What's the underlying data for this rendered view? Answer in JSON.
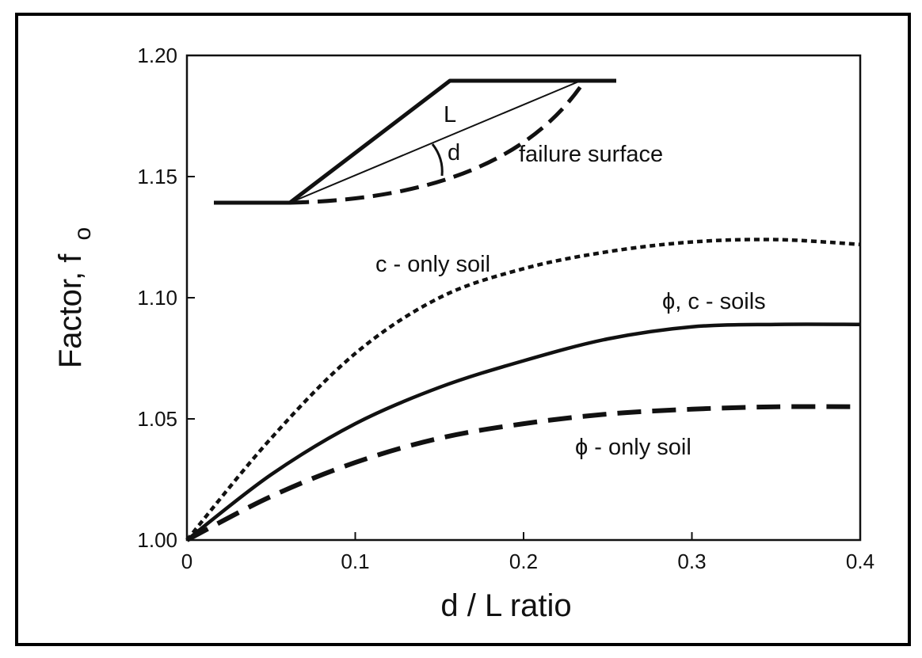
{
  "chart_data": {
    "type": "line",
    "xlabel": "d / L ratio",
    "ylabel": "Factor, f",
    "ylabel_subscript": "o",
    "xlim": [
      0,
      0.4
    ],
    "ylim": [
      1.0,
      1.2
    ],
    "x_ticks": [
      "0",
      "0.1",
      "0.2",
      "0.3",
      "0.4"
    ],
    "y_ticks": [
      "1.00",
      "1.05",
      "1.10",
      "1.15",
      "1.20"
    ],
    "grid": false,
    "legend": "none (series labelled directly on plot)",
    "series": [
      {
        "name": "c - only soil",
        "style": "dotted",
        "x": [
          0,
          0.05,
          0.1,
          0.15,
          0.2,
          0.25,
          0.3,
          0.35,
          0.4
        ],
        "y": [
          1.0,
          1.042,
          1.077,
          1.1,
          1.112,
          1.119,
          1.123,
          1.124,
          1.122
        ]
      },
      {
        "name": "ϕ, c - soils",
        "style": "solid",
        "x": [
          0,
          0.05,
          0.1,
          0.15,
          0.2,
          0.25,
          0.3,
          0.35,
          0.4
        ],
        "y": [
          1.0,
          1.027,
          1.048,
          1.063,
          1.074,
          1.083,
          1.088,
          1.089,
          1.089
        ]
      },
      {
        "name": "ϕ - only soil",
        "style": "dashed",
        "x": [
          0,
          0.05,
          0.1,
          0.15,
          0.2,
          0.25,
          0.3,
          0.35,
          0.4
        ],
        "y": [
          1.0,
          1.018,
          1.032,
          1.042,
          1.048,
          1.052,
          1.054,
          1.055,
          1.055
        ]
      }
    ],
    "inset": {
      "label_L": "L",
      "label_d": "d",
      "label_failure": "failure surface"
    },
    "colors": {
      "line": "#111111",
      "background": "#ffffff",
      "frame": "#000000"
    }
  }
}
